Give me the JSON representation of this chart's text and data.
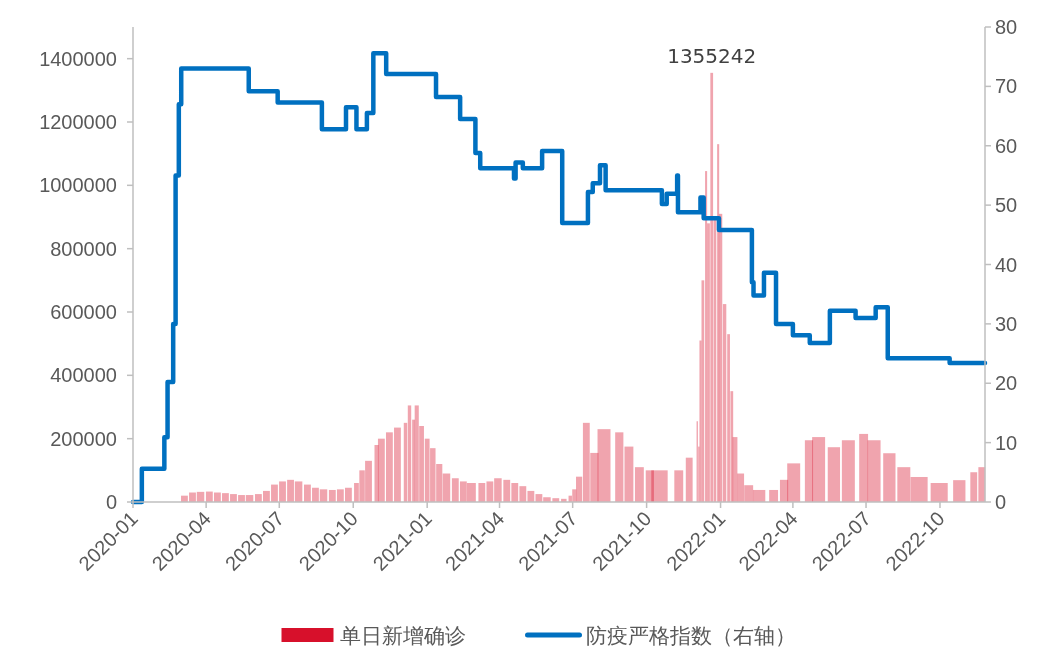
{
  "chart_data": {
    "type": "bar",
    "legend": "bottom",
    "xlim": [
      "2020-01-01",
      "2022-11-26"
    ],
    "xticks": [
      "2020-01",
      "2020-04",
      "2020-07",
      "2020-10",
      "2021-01",
      "2021-04",
      "2021-07",
      "2021-10",
      "2022-01",
      "2022-04",
      "2022-07",
      "2022-10"
    ],
    "ylim": [
      0,
      1500000
    ],
    "yticks": [
      0,
      200000,
      400000,
      600000,
      800000,
      1000000,
      1200000,
      1400000
    ],
    "y2lim": [
      0,
      80
    ],
    "y2ticks": [
      0,
      10,
      20,
      30,
      40,
      50,
      60,
      70,
      80
    ],
    "annotations": [
      {
        "text": "1355242",
        "x": "2021-12-21",
        "y": 1355242
      }
    ],
    "series": [
      {
        "name": "单日新增确诊",
        "color": "#d7102b",
        "x": [
          "2020-03-05",
          "2020-03-15",
          "2020-03-25",
          "2020-04-05",
          "2020-04-15",
          "2020-04-25",
          "2020-05-05",
          "2020-05-15",
          "2020-05-25",
          "2020-06-05",
          "2020-06-15",
          "2020-06-25",
          "2020-07-05",
          "2020-07-15",
          "2020-07-25",
          "2020-08-05",
          "2020-08-15",
          "2020-08-25",
          "2020-09-05",
          "2020-09-15",
          "2020-09-25",
          "2020-10-05",
          "2020-10-12",
          "2020-10-20",
          "2020-10-30",
          "2020-11-05",
          "2020-11-15",
          "2020-11-25",
          "2020-12-05",
          "2020-12-10",
          "2020-12-15",
          "2020-12-19",
          "2020-12-25",
          "2021-01-01",
          "2021-01-08",
          "2021-01-16",
          "2021-01-25",
          "2021-02-05",
          "2021-02-15",
          "2021-02-25",
          "2021-03-10",
          "2021-03-20",
          "2021-03-30",
          "2021-04-10",
          "2021-04-20",
          "2021-04-30",
          "2021-05-10",
          "2021-05-20",
          "2021-05-30",
          "2021-06-10",
          "2021-06-20",
          "2021-06-28",
          "2021-07-03",
          "2021-07-09",
          "2021-07-18",
          "2021-07-28",
          "2021-08-09",
          "2021-08-28",
          "2021-09-09",
          "2021-09-22",
          "2021-10-05",
          "2021-10-17",
          "2021-11-10",
          "2021-11-23",
          "2021-12-03",
          "2021-12-05",
          "2021-12-07",
          "2021-12-10",
          "2021-12-14",
          "2021-12-17",
          "2021-12-21",
          "2021-12-25",
          "2021-12-29",
          "2022-01-01",
          "2022-01-06",
          "2022-01-11",
          "2022-01-15",
          "2022-01-19",
          "2022-01-26",
          "2022-02-05",
          "2022-02-18",
          "2022-03-08",
          "2022-03-21",
          "2022-04-02",
          "2022-04-21",
          "2022-05-03",
          "2022-05-22",
          "2022-06-09",
          "2022-06-28",
          "2022-07-11",
          "2022-07-30",
          "2022-08-17",
          "2022-09-05",
          "2022-09-30",
          "2022-10-25",
          "2022-11-12",
          "2022-11-22"
        ],
        "values": [
          20000,
          30000,
          32000,
          33000,
          30000,
          28000,
          25000,
          22000,
          22000,
          25000,
          35000,
          55000,
          65000,
          70000,
          65000,
          55000,
          45000,
          40000,
          38000,
          40000,
          45000,
          60000,
          100000,
          130000,
          180000,
          200000,
          220000,
          235000,
          250000,
          305000,
          260000,
          305000,
          240000,
          200000,
          170000,
          120000,
          90000,
          75000,
          65000,
          60000,
          60000,
          65000,
          75000,
          70000,
          60000,
          50000,
          35000,
          25000,
          15000,
          12000,
          10000,
          20000,
          40000,
          80000,
          250000,
          155000,
          230000,
          220000,
          175000,
          110000,
          100000,
          100000,
          100000,
          140000,
          255000,
          175000,
          510000,
          700000,
          1045000,
          880000,
          1355242,
          900000,
          1130000,
          910000,
          625000,
          530000,
          350000,
          205000,
          90000,
          53000,
          38000,
          38000,
          70000,
          122000,
          195000,
          205000,
          173000,
          195000,
          215000,
          195000,
          154000,
          110000,
          79000,
          60000,
          69000,
          94000,
          110000
        ]
      },
      {
        "name": "防疫严格指数（右轴）",
        "type": "step",
        "axis": "y2",
        "color": "#0070c0",
        "x": [
          "2020-01-01",
          "2020-01-12",
          "2020-02-09",
          "2020-02-13",
          "2020-02-20",
          "2020-02-23",
          "2020-02-27",
          "2020-03-01",
          "2020-05-24",
          "2020-06-29",
          "2020-08-23",
          "2020-09-22",
          "2020-10-05",
          "2020-10-18",
          "2020-10-26",
          "2020-11-11",
          "2021-01-12",
          "2021-02-11",
          "2021-03-02",
          "2021-03-08",
          "2021-04-19",
          "2021-04-21",
          "2021-04-30",
          "2021-05-24",
          "2021-06-18",
          "2021-07-20",
          "2021-07-26",
          "2021-08-04",
          "2021-08-11",
          "2021-10-20",
          "2021-10-26",
          "2021-11-08",
          "2021-11-09",
          "2021-12-07",
          "2021-12-11",
          "2021-12-30",
          "2022-02-09",
          "2022-02-11",
          "2022-02-24",
          "2022-03-11",
          "2022-04-01",
          "2022-04-22",
          "2022-05-17",
          "2022-06-18",
          "2022-07-13",
          "2022-07-28",
          "2022-10-13",
          "2022-11-26"
        ],
        "values": [
          0,
          5.6,
          10.9,
          20.2,
          30,
          55,
          67,
          73,
          69.2,
          67.3,
          62.8,
          66.5,
          62.8,
          65.5,
          75.6,
          72.1,
          68.2,
          64.5,
          58.8,
          56.2,
          54.5,
          57.2,
          56.2,
          59.1,
          47,
          52.2,
          53.7,
          56.7,
          52.5,
          50.2,
          51.9,
          55,
          48.8,
          51.3,
          47.8,
          45.8,
          37,
          34.8,
          38.6,
          30,
          28.1,
          26.8,
          32.2,
          31,
          32.8,
          24.2,
          23.4,
          23.4
        ]
      }
    ]
  }
}
